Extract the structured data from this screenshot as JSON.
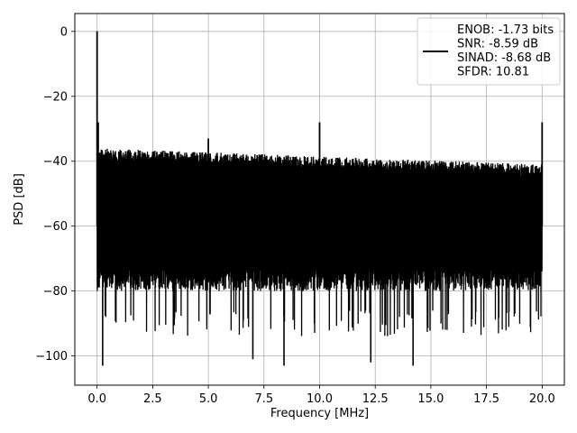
{
  "chart_data": {
    "type": "line",
    "xlabel": "Frequency [MHz]",
    "ylabel": "PSD [dB]",
    "xlim": [
      -1.0,
      21.0
    ],
    "ylim": [
      -109,
      5.5
    ],
    "xticks": [
      0.0,
      2.5,
      5.0,
      7.5,
      10.0,
      12.5,
      15.0,
      17.5,
      20.0
    ],
    "xtick_labels": [
      "0.0",
      "2.5",
      "5.0",
      "7.5",
      "10.0",
      "12.5",
      "15.0",
      "17.5",
      "20.0"
    ],
    "yticks": [
      0,
      -20,
      -40,
      -60,
      -80,
      -100
    ],
    "ytick_labels": [
      "0",
      "−20",
      "−40",
      "−60",
      "−80",
      "−100"
    ],
    "grid": true,
    "legend_position": "top-right",
    "series": [
      {
        "name": "ENOB: -1.73 bits\nSNR: -8.59 dB\nSINAD: -8.68 dB\nSFDR: 10.81",
        "color": "#000000",
        "noise_floor": {
          "band_top_start": -36,
          "band_top_end": -41,
          "band_bottom": -72,
          "typical_dips_to": -86,
          "deepest_dips": [
            {
              "x": 0.25,
              "y": -103
            },
            {
              "x": 7.0,
              "y": -101
            },
            {
              "x": 8.4,
              "y": -103
            },
            {
              "x": 12.3,
              "y": -102
            },
            {
              "x": 14.2,
              "y": -103
            }
          ]
        },
        "peaks": [
          {
            "x": 0.0,
            "y": 0
          },
          {
            "x": 0.05,
            "y": -28
          },
          {
            "x": 5.0,
            "y": -33
          },
          {
            "x": 10.0,
            "y": -28
          },
          {
            "x": 20.0,
            "y": -28
          }
        ]
      }
    ],
    "legend_lines": [
      "ENOB: -1.73 bits",
      "SNR: -8.59 dB",
      "SINAD: -8.68 dB",
      "SFDR: 10.81"
    ]
  }
}
